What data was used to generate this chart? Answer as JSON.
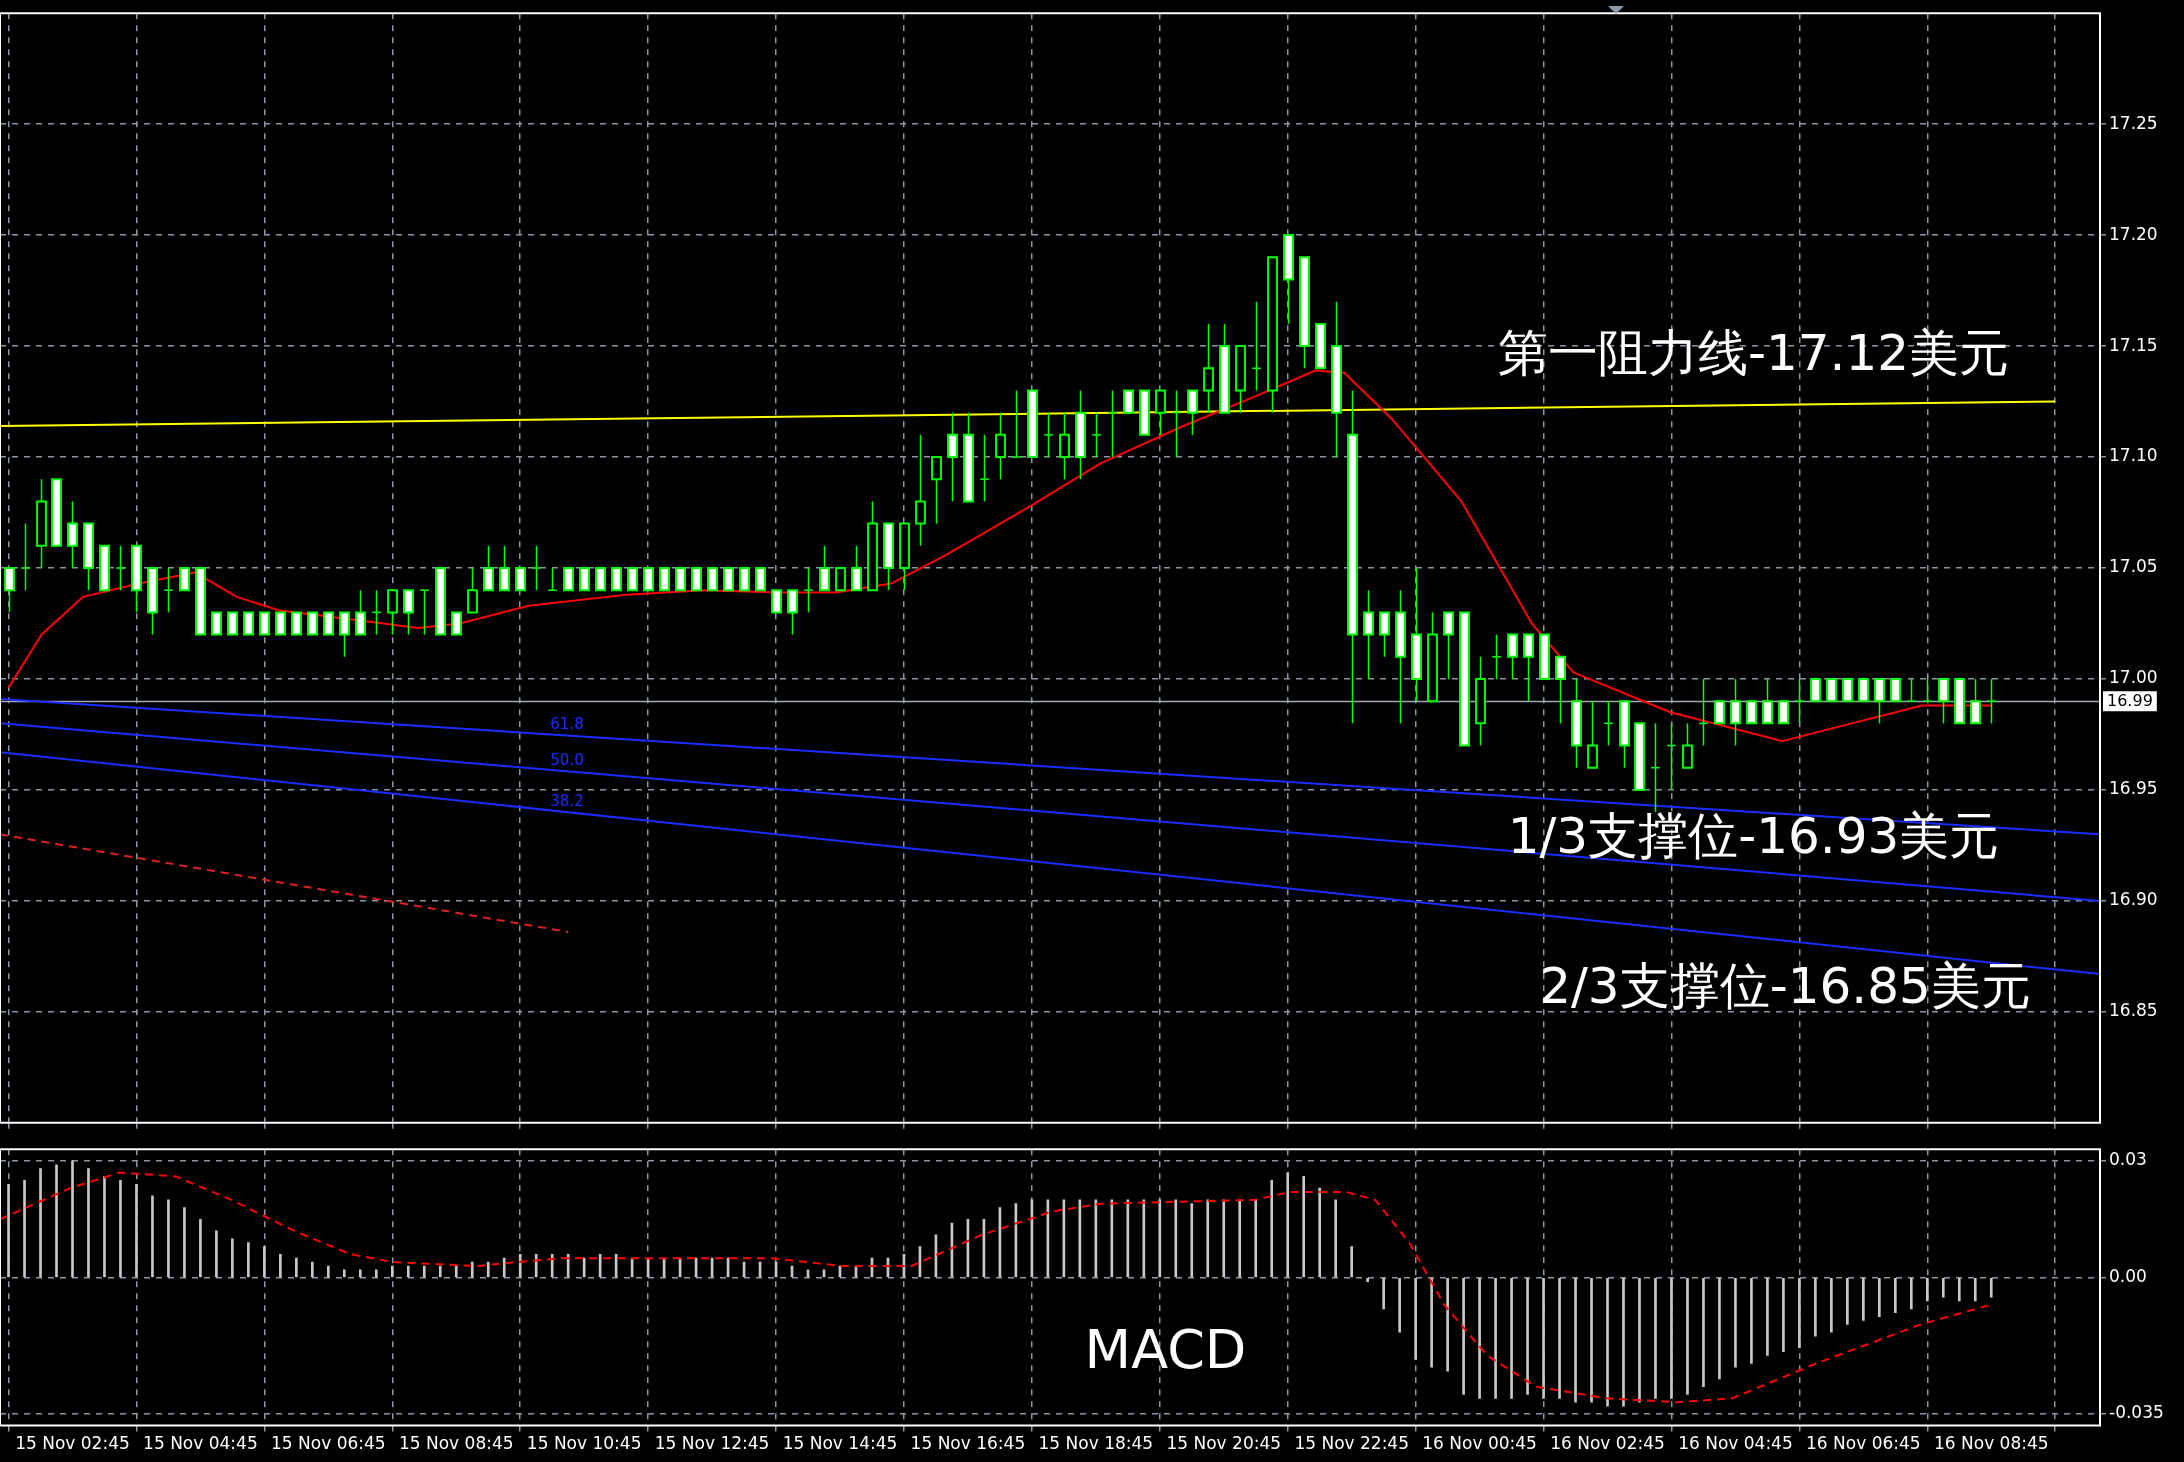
{
  "chart_data": [
    {
      "type": "candlestick",
      "x": [
        "--11-15T01:45",
        "--11-15T02:00",
        "--11-15T02:15",
        "--11-15T02:30",
        "--11-15T02:45",
        "--11-15T03:00",
        "--11-15T03:15",
        "--11-15T03:30",
        "--11-15T03:45",
        "--11-15T04:00",
        "--11-15T04:15",
        "--11-15T04:30",
        "--11-15T04:45",
        "--11-15T05:00",
        "--11-15T05:15",
        "--11-15T05:30",
        "--11-15T05:45",
        "--11-15T06:00",
        "--11-15T06:15",
        "--11-15T06:30",
        "--11-15T06:45",
        "--11-15T07:00",
        "--11-15T07:15",
        "--11-15T07:30",
        "--11-15T07:45",
        "--11-15T08:00",
        "--11-15T08:15",
        "--11-15T08:30",
        "--11-15T08:45",
        "--11-15T09:00",
        "--11-15T09:15",
        "--11-15T09:30",
        "--11-15T09:45",
        "--11-15T10:00",
        "--11-15T10:15",
        "--11-15T10:30",
        "--11-15T10:45",
        "--11-15T11:00",
        "--11-15T11:15",
        "--11-15T11:30",
        "--11-15T11:45",
        "--11-15T12:00",
        "--11-15T12:15",
        "--11-15T12:30",
        "--11-15T12:45",
        "--11-15T13:00",
        "--11-15T13:15",
        "--11-15T13:30",
        "--11-15T13:45",
        "--11-15T14:00",
        "--11-15T14:15",
        "--11-15T14:30",
        "--11-15T14:45",
        "--11-15T15:00",
        "--11-15T15:15",
        "--11-15T15:30",
        "--11-15T15:45",
        "--11-15T16:00",
        "--11-15T16:15",
        "--11-15T16:30",
        "--11-15T16:45",
        "--11-15T17:00",
        "--11-15T17:15",
        "--11-15T17:30",
        "--11-15T17:45",
        "--11-15T18:00",
        "--11-15T18:15",
        "--11-15T18:30",
        "--11-15T18:45",
        "--11-15T19:00",
        "--11-15T19:15",
        "--11-15T19:30",
        "--11-15T19:45",
        "--11-15T20:00",
        "--11-15T20:15",
        "--11-15T20:30",
        "--11-15T20:45",
        "--11-15T21:00",
        "--11-15T21:15",
        "--11-15T21:30",
        "--11-15T21:45",
        "--11-15T22:00",
        "--11-15T22:15",
        "--11-15T22:30",
        "--11-15T22:45",
        "--11-15T23:00",
        "--11-15T23:15",
        "--11-15T23:30",
        "--11-15T23:45",
        "--11-16T00:00",
        "--11-16T00:15",
        "--11-16T00:30",
        "--11-16T00:45",
        "--11-16T01:00",
        "--11-16T01:15",
        "--11-16T01:30",
        "--11-16T01:45",
        "--11-16T02:00",
        "--11-16T02:15",
        "--11-16T02:30",
        "--11-16T02:45",
        "--11-16T03:00",
        "--11-16T03:15",
        "--11-16T03:30",
        "--11-16T03:45",
        "--11-16T04:00",
        "--11-16T04:15",
        "--11-16T04:30",
        "--11-16T04:45",
        "--11-16T05:00",
        "--11-16T05:15",
        "--11-16T05:30",
        "--11-16T05:45",
        "--11-16T06:00",
        "--11-16T06:15",
        "--11-16T06:30",
        "--11-16T06:45",
        "--11-16T07:00",
        "--11-16T07:15",
        "--11-16T07:30",
        "--11-16T07:45",
        "--11-16T08:00",
        "--11-16T08:15",
        "--11-16T08:30",
        "--11-16T08:45"
      ],
      "ohlc": [
        [
          17.05,
          17.05,
          17.03,
          17.04
        ],
        [
          17.05,
          17.07,
          17.04,
          17.05
        ],
        [
          17.06,
          17.09,
          17.05,
          17.08
        ],
        [
          17.09,
          17.09,
          17.06,
          17.06
        ],
        [
          17.07,
          17.08,
          17.05,
          17.06
        ],
        [
          17.07,
          17.07,
          17.04,
          17.05
        ],
        [
          17.06,
          17.06,
          17.04,
          17.04
        ],
        [
          17.05,
          17.06,
          17.04,
          17.05
        ],
        [
          17.06,
          17.06,
          17.03,
          17.04
        ],
        [
          17.05,
          17.05,
          17.02,
          17.03
        ],
        [
          17.04,
          17.05,
          17.03,
          17.04
        ],
        [
          17.05,
          17.05,
          17.04,
          17.04
        ],
        [
          17.05,
          17.05,
          17.02,
          17.02
        ],
        [
          17.03,
          17.03,
          17.02,
          17.02
        ],
        [
          17.03,
          17.03,
          17.02,
          17.02
        ],
        [
          17.03,
          17.03,
          17.02,
          17.02
        ],
        [
          17.03,
          17.03,
          17.02,
          17.02
        ],
        [
          17.03,
          17.03,
          17.02,
          17.02
        ],
        [
          17.03,
          17.03,
          17.02,
          17.02
        ],
        [
          17.03,
          17.03,
          17.02,
          17.02
        ],
        [
          17.03,
          17.03,
          17.02,
          17.02
        ],
        [
          17.03,
          17.03,
          17.01,
          17.02
        ],
        [
          17.03,
          17.04,
          17.02,
          17.02
        ],
        [
          17.03,
          17.04,
          17.02,
          17.03
        ],
        [
          17.03,
          17.04,
          17.02,
          17.04
        ],
        [
          17.04,
          17.04,
          17.02,
          17.03
        ],
        [
          17.04,
          17.04,
          17.02,
          17.04
        ],
        [
          17.05,
          17.05,
          17.02,
          17.02
        ],
        [
          17.03,
          17.03,
          17.02,
          17.02
        ],
        [
          17.03,
          17.05,
          17.03,
          17.04
        ],
        [
          17.05,
          17.06,
          17.04,
          17.04
        ],
        [
          17.05,
          17.06,
          17.04,
          17.04
        ],
        [
          17.05,
          17.05,
          17.04,
          17.04
        ],
        [
          17.05,
          17.06,
          17.04,
          17.05
        ],
        [
          17.04,
          17.05,
          17.04,
          17.04
        ],
        [
          17.05,
          17.05,
          17.04,
          17.04
        ],
        [
          17.05,
          17.05,
          17.04,
          17.04
        ],
        [
          17.05,
          17.05,
          17.04,
          17.04
        ],
        [
          17.05,
          17.05,
          17.04,
          17.04
        ],
        [
          17.05,
          17.05,
          17.04,
          17.04
        ],
        [
          17.05,
          17.05,
          17.04,
          17.04
        ],
        [
          17.05,
          17.05,
          17.04,
          17.04
        ],
        [
          17.05,
          17.05,
          17.04,
          17.04
        ],
        [
          17.05,
          17.05,
          17.04,
          17.04
        ],
        [
          17.05,
          17.05,
          17.04,
          17.04
        ],
        [
          17.05,
          17.05,
          17.04,
          17.04
        ],
        [
          17.05,
          17.05,
          17.04,
          17.04
        ],
        [
          17.05,
          17.05,
          17.04,
          17.04
        ],
        [
          17.04,
          17.04,
          17.03,
          17.03
        ],
        [
          17.04,
          17.04,
          17.02,
          17.03
        ],
        [
          17.04,
          17.05,
          17.03,
          17.04
        ],
        [
          17.05,
          17.06,
          17.04,
          17.04
        ],
        [
          17.04,
          17.05,
          17.04,
          17.05
        ],
        [
          17.05,
          17.06,
          17.04,
          17.04
        ],
        [
          17.04,
          17.08,
          17.04,
          17.07
        ],
        [
          17.07,
          17.07,
          17.04,
          17.05
        ],
        [
          17.05,
          17.07,
          17.04,
          17.07
        ],
        [
          17.07,
          17.11,
          17.06,
          17.08
        ],
        [
          17.09,
          17.1,
          17.07,
          17.1
        ],
        [
          17.11,
          17.12,
          17.08,
          17.1
        ],
        [
          17.11,
          17.12,
          17.08,
          17.08
        ],
        [
          17.09,
          17.11,
          17.08,
          17.09
        ],
        [
          17.1,
          17.12,
          17.09,
          17.11
        ],
        [
          17.1,
          17.13,
          17.1,
          17.1
        ],
        [
          17.13,
          17.13,
          17.1,
          17.1
        ],
        [
          17.11,
          17.12,
          17.1,
          17.11
        ],
        [
          17.1,
          17.12,
          17.09,
          17.11
        ],
        [
          17.12,
          17.13,
          17.09,
          17.1
        ],
        [
          17.11,
          17.12,
          17.1,
          17.11
        ],
        [
          17.12,
          17.13,
          17.1,
          17.12
        ],
        [
          17.13,
          17.13,
          17.12,
          17.12
        ],
        [
          17.13,
          17.13,
          17.11,
          17.11
        ],
        [
          17.12,
          17.13,
          17.11,
          17.13
        ],
        [
          17.12,
          17.13,
          17.1,
          17.12
        ],
        [
          17.13,
          17.13,
          17.11,
          17.12
        ],
        [
          17.13,
          17.16,
          17.12,
          17.14
        ],
        [
          17.15,
          17.16,
          17.12,
          17.12
        ],
        [
          17.13,
          17.15,
          17.12,
          17.15
        ],
        [
          17.14,
          17.17,
          17.13,
          17.14
        ],
        [
          17.13,
          17.19,
          17.12,
          17.19
        ],
        [
          17.2,
          17.2,
          17.16,
          17.18
        ],
        [
          17.19,
          17.19,
          17.14,
          17.15
        ],
        [
          17.16,
          17.16,
          17.14,
          17.14
        ],
        [
          17.15,
          17.17,
          17.1,
          17.12
        ],
        [
          17.11,
          17.13,
          16.98,
          17.02
        ],
        [
          17.03,
          17.04,
          17,
          17.02
        ],
        [
          17.03,
          17.03,
          17.01,
          17.02
        ],
        [
          17.03,
          17.04,
          16.98,
          17.01
        ],
        [
          17.02,
          17.05,
          16.99,
          17
        ],
        [
          16.99,
          17.03,
          16.99,
          17.02
        ],
        [
          17.03,
          17.03,
          17,
          17.02
        ],
        [
          17.03,
          17.03,
          16.97,
          16.97
        ],
        [
          16.98,
          17.01,
          16.97,
          17
        ],
        [
          17.01,
          17.02,
          17,
          17.01
        ],
        [
          17.02,
          17.02,
          17,
          17.01
        ],
        [
          17.02,
          17.02,
          16.99,
          17.01
        ],
        [
          17.02,
          17.02,
          17,
          17
        ],
        [
          17.01,
          17.01,
          16.98,
          17
        ],
        [
          16.99,
          17,
          16.96,
          16.97
        ],
        [
          16.96,
          16.99,
          16.96,
          16.97
        ],
        [
          16.98,
          16.99,
          16.97,
          16.98
        ],
        [
          16.99,
          16.99,
          16.96,
          16.97
        ],
        [
          16.98,
          16.98,
          16.95,
          16.95
        ],
        [
          16.96,
          16.98,
          16.94,
          16.96
        ],
        [
          16.97,
          16.98,
          16.95,
          16.97
        ],
        [
          16.96,
          16.98,
          16.96,
          16.97
        ],
        [
          16.98,
          17,
          16.97,
          16.98
        ],
        [
          16.99,
          16.99,
          16.98,
          16.98
        ],
        [
          16.99,
          17,
          16.97,
          16.98
        ],
        [
          16.99,
          16.99,
          16.98,
          16.98
        ],
        [
          16.99,
          17,
          16.98,
          16.98
        ],
        [
          16.99,
          16.99,
          16.98,
          16.98
        ],
        [
          16.99,
          17,
          16.98,
          16.99
        ],
        [
          17,
          17,
          16.99,
          16.99
        ],
        [
          17,
          17,
          16.99,
          16.99
        ],
        [
          17,
          17,
          16.99,
          16.99
        ],
        [
          17,
          17,
          16.99,
          16.99
        ],
        [
          17,
          17,
          16.98,
          16.99
        ],
        [
          17,
          17,
          16.99,
          16.99
        ],
        [
          16.99,
          17,
          16.99,
          16.99
        ],
        [
          16.99,
          17,
          16.99,
          16.99
        ],
        [
          17,
          17,
          16.98,
          16.99
        ],
        [
          17,
          17,
          16.98,
          16.98
        ],
        [
          16.99,
          17,
          16.98,
          16.98
        ],
        [
          16.99,
          17,
          16.98,
          16.99
        ]
      ],
      "series": [
        {
          "type": "line",
          "color": "#ff0000",
          "x": [
            "--11-15T01:45",
            "--11-15T02:16",
            "--11-15T02:55",
            "--11-15T03:47",
            "--11-15T04:40",
            "--11-15T05:19",
            "--11-15T05:58",
            "--11-15T07:04",
            "--11-15T08:09",
            "--11-15T08:48",
            "--11-15T09:53",
            "--11-15T11:25",
            "--11-15T12:37",
            "--11-15T13:49",
            "--11-15T14:41",
            "--11-15T15:33",
            "--11-15T16:25",
            "--11-15T17:44",
            "--11-15T18:49",
            "--11-15T20:07",
            "--11-15T21:13",
            "--11-15T22:11",
            "--11-15T22:38",
            "--11-15T23:23",
            "--11-16T00:28",
            "--11-16T01:34",
            "--11-16T02:13",
            "--11-16T03:44",
            "--11-16T05:29",
            "--11-16T06:34",
            "--11-16T07:40",
            "--11-16T08:45"
          ],
          "values": [
            16.996,
            17.02,
            17.037,
            17.043,
            17.048,
            17.037,
            17.031,
            17.027,
            17.023,
            17.025,
            17.033,
            17.038,
            17.04,
            17.039,
            17.039,
            17.043,
            17.056,
            17.078,
            17.097,
            17.114,
            17.127,
            17.139,
            17.138,
            17.117,
            17.08,
            17.025,
            17.003,
            16.985,
            16.972,
            16.98,
            16.988,
            16.988
          ]
        },
        {
          "type": "line",
          "color": "#ffff00",
          "x": [
            "--11-15T01:37",
            "--11-16T09:45"
          ],
          "values": [
            17.114,
            17.125
          ]
        },
        {
          "type": "line",
          "name": "61.8",
          "color": "#1a2cff",
          "x": [
            "--11-15T01:37",
            "--11-16T10:27"
          ],
          "values": [
            16.991,
            16.93
          ]
        },
        {
          "type": "line",
          "name": "50.0",
          "color": "#1a2cff",
          "x": [
            "--11-15T01:37",
            "--11-16T10:27"
          ],
          "values": [
            16.98,
            16.9
          ]
        },
        {
          "type": "line",
          "name": "38.2",
          "color": "#1a2cff",
          "x": [
            "--11-15T01:37",
            "--11-16T10:27"
          ],
          "values": [
            16.967,
            16.867
          ]
        },
        {
          "type": "line",
          "color": "#e02020",
          "line_style": "dashed",
          "x": [
            "--11-15T01:37",
            "--11-15T10:30"
          ],
          "values": [
            16.93,
            16.886
          ]
        }
      ],
      "xlim": [
        "--11-15T01:37",
        "--11-16T10:27"
      ],
      "xticks": [
        {
          "value": "--11-15T02:45",
          "label": null
        },
        {
          "value": "--11-15T04:45",
          "label": null
        },
        {
          "value": "--11-15T06:45",
          "label": null
        },
        {
          "value": "--11-15T08:45",
          "label": null
        },
        {
          "value": "--11-15T10:45",
          "label": null
        },
        {
          "value": "--11-15T12:45",
          "label": null
        },
        {
          "value": "--11-15T14:45",
          "label": null
        },
        {
          "value": "--11-15T16:45",
          "label": null
        },
        {
          "value": "--11-15T18:45",
          "label": null
        },
        {
          "value": "--11-15T20:45",
          "label": null
        },
        {
          "value": "--11-15T22:45",
          "label": null
        },
        {
          "value": "--11-16T00:45",
          "label": null
        },
        {
          "value": "--11-16T02:45",
          "label": null
        },
        {
          "value": "--11-16T04:45",
          "label": null
        },
        {
          "value": "--11-16T06:45",
          "label": null
        },
        {
          "value": "--11-16T08:45",
          "label": null
        }
      ],
      "ylim": [
        16.8,
        17.3
      ],
      "yticks": [
        {
          "value": 16.85,
          "label": "16.85"
        },
        {
          "value": 16.9,
          "label": "16.90"
        },
        {
          "value": 16.95,
          "label": "16.95"
        },
        {
          "value": 17,
          "label": "17.00"
        },
        {
          "value": 17.05,
          "label": "17.05"
        },
        {
          "value": 17.1,
          "label": "17.10"
        },
        {
          "value": 17.15,
          "label": "17.15"
        },
        {
          "value": 17.2,
          "label": "17.20"
        },
        {
          "value": 17.25,
          "label": "17.25"
        }
      ],
      "ref_lines": [
        {
          "axis": "y",
          "value": 16.99,
          "label": "16.99",
          "color": "#a0a8b4"
        }
      ],
      "annotations": [
        "第一阻力线-17.12美元",
        "1/3支撑位-16.93美元",
        "2/3支撑位-16.85美元"
      ],
      "grid": true,
      "tick_labels": "y"
    },
    {
      "type": "bar",
      "x": [
        "--11-15T01:45",
        "--11-15T02:00",
        "--11-15T02:15",
        "--11-15T02:30",
        "--11-15T02:45",
        "--11-15T03:00",
        "--11-15T03:15",
        "--11-15T03:30",
        "--11-15T03:45",
        "--11-15T04:00",
        "--11-15T04:15",
        "--11-15T04:30",
        "--11-15T04:45",
        "--11-15T05:00",
        "--11-15T05:15",
        "--11-15T05:30",
        "--11-15T05:45",
        "--11-15T06:00",
        "--11-15T06:15",
        "--11-15T06:30",
        "--11-15T06:45",
        "--11-15T07:00",
        "--11-15T07:15",
        "--11-15T07:30",
        "--11-15T07:45",
        "--11-15T08:00",
        "--11-15T08:15",
        "--11-15T08:30",
        "--11-15T08:45",
        "--11-15T09:00",
        "--11-15T09:15",
        "--11-15T09:30",
        "--11-15T09:45",
        "--11-15T10:00",
        "--11-15T10:15",
        "--11-15T10:30",
        "--11-15T10:45",
        "--11-15T11:00",
        "--11-15T11:15",
        "--11-15T11:30",
        "--11-15T11:45",
        "--11-15T12:00",
        "--11-15T12:15",
        "--11-15T12:30",
        "--11-15T12:45",
        "--11-15T13:00",
        "--11-15T13:15",
        "--11-15T13:30",
        "--11-15T13:45",
        "--11-15T14:00",
        "--11-15T14:15",
        "--11-15T14:30",
        "--11-15T14:45",
        "--11-15T15:00",
        "--11-15T15:15",
        "--11-15T15:30",
        "--11-15T15:45",
        "--11-15T16:00",
        "--11-15T16:15",
        "--11-15T16:30",
        "--11-15T16:45",
        "--11-15T17:00",
        "--11-15T17:15",
        "--11-15T17:30",
        "--11-15T17:45",
        "--11-15T18:00",
        "--11-15T18:15",
        "--11-15T18:30",
        "--11-15T18:45",
        "--11-15T19:00",
        "--11-15T19:15",
        "--11-15T19:30",
        "--11-15T19:45",
        "--11-15T20:00",
        "--11-15T20:15",
        "--11-15T20:30",
        "--11-15T20:45",
        "--11-15T21:00",
        "--11-15T21:15",
        "--11-15T21:30",
        "--11-15T21:45",
        "--11-15T22:00",
        "--11-15T22:15",
        "--11-15T22:30",
        "--11-15T22:45",
        "--11-15T23:00",
        "--11-15T23:15",
        "--11-15T23:30",
        "--11-15T23:45",
        "--11-16T00:00",
        "--11-16T00:15",
        "--11-16T00:30",
        "--11-16T00:45",
        "--11-16T01:00",
        "--11-16T01:15",
        "--11-16T01:30",
        "--11-16T01:45",
        "--11-16T02:00",
        "--11-16T02:15",
        "--11-16T02:30",
        "--11-16T02:45",
        "--11-16T03:00",
        "--11-16T03:15",
        "--11-16T03:30",
        "--11-16T03:45",
        "--11-16T04:00",
        "--11-16T04:15",
        "--11-16T04:30",
        "--11-16T04:45",
        "--11-16T05:00",
        "--11-16T05:15",
        "--11-16T05:30",
        "--11-16T05:45",
        "--11-16T06:00",
        "--11-16T06:15",
        "--11-16T06:30",
        "--11-16T06:45",
        "--11-16T07:00",
        "--11-16T07:15",
        "--11-16T07:30",
        "--11-16T07:45",
        "--11-16T08:00",
        "--11-16T08:15",
        "--11-16T08:30",
        "--11-16T08:45"
      ],
      "series": [
        {
          "type": "bar",
          "color": "#c8c8c8",
          "values": [
            0.024,
            0.025,
            0.028,
            0.029,
            0.03,
            0.028,
            0.026,
            0.025,
            0.024,
            0.021,
            0.02,
            0.018,
            0.015,
            0.012,
            0.01,
            0.009,
            0.008,
            0.006,
            0.005,
            0.004,
            0.003,
            0.002,
            0.002,
            0.002,
            0.003,
            0.003,
            0.003,
            0.003,
            0.003,
            0.004,
            0.004,
            0.005,
            0.006,
            0.006,
            0.006,
            0.006,
            0.005,
            0.006,
            0.006,
            0.005,
            0.005,
            0.005,
            0.005,
            0.005,
            0.005,
            0.005,
            0.004,
            0.004,
            0.004,
            0.003,
            0.002,
            0.002,
            0.003,
            0.003,
            0.005,
            0.005,
            0.006,
            0.008,
            0.011,
            0.014,
            0.015,
            0.015,
            0.018,
            0.019,
            0.02,
            0.02,
            0.02,
            0.02,
            0.02,
            0.02,
            0.02,
            0.02,
            0.02,
            0.02,
            0.019,
            0.02,
            0.02,
            0.02,
            0.02,
            0.025,
            0.027,
            0.026,
            0.023,
            0.02,
            0.008,
            -0.001,
            -0.008,
            -0.014,
            -0.021,
            -0.023,
            -0.024,
            -0.03,
            -0.031,
            -0.031,
            -0.031,
            -0.03,
            -0.031,
            -0.031,
            -0.032,
            -0.032,
            -0.033,
            -0.033,
            -0.032,
            -0.031,
            -0.031,
            -0.03,
            -0.028,
            -0.026,
            -0.023,
            -0.022,
            -0.02,
            -0.019,
            -0.018,
            -0.015,
            -0.014,
            -0.012,
            -0.011,
            -0.01,
            -0.009,
            -0.008,
            -0.006,
            -0.005,
            -0.006,
            -0.006,
            -0.005
          ]
        },
        {
          "type": "line",
          "color": "#ff0000",
          "line_style": "dashed",
          "x": [
            "--11-15T01:37",
            "--11-15T02:43",
            "--11-15T03:29",
            "--11-15T04:22",
            "--11-15T05:14",
            "--11-15T06:13",
            "--11-15T07:06",
            "--11-15T07:46",
            "--11-15T09:04",
            "--11-15T10:23",
            "--11-15T11:29",
            "--11-15T13:41",
            "--11-15T14:47",
            "--11-15T15:52",
            "--11-15T16:58",
            "--11-15T18:04",
            "--11-15T18:49",
            "--11-15T21:14",
            "--11-15T21:47",
            "--11-15T22:40",
            "--11-15T23:07",
            "--11-15T23:39",
            "--11-16T00:12",
            "--11-16T00:52",
            "--11-16T01:38",
            "--11-16T02:44",
            "--11-16T03:50",
            "--11-16T04:42",
            "--11-16T06:01",
            "--11-16T07:39",
            "--11-16T08:44"
          ],
          "values": [
            0.015,
            0.023,
            0.027,
            0.026,
            0.02,
            0.012,
            0.006,
            0.004,
            0.003,
            0.005,
            0.005,
            0.005,
            0.003,
            0.003,
            0.011,
            0.017,
            0.019,
            0.02,
            0.022,
            0.022,
            0.02,
            0.009,
            -0.007,
            -0.02,
            -0.028,
            -0.031,
            -0.032,
            -0.031,
            -0.022,
            -0.012,
            -0.007
          ]
        }
      ],
      "xlim": [
        "--11-15T01:37",
        "--11-16T10:27"
      ],
      "xticks": [
        {
          "value": "--11-15T02:45",
          "label": "15 Nov 02:45"
        },
        {
          "value": "--11-15T04:45",
          "label": "15 Nov 04:45"
        },
        {
          "value": "--11-15T06:45",
          "label": "15 Nov 06:45"
        },
        {
          "value": "--11-15T08:45",
          "label": "15 Nov 08:45"
        },
        {
          "value": "--11-15T10:45",
          "label": "15 Nov 10:45"
        },
        {
          "value": "--11-15T12:45",
          "label": "15 Nov 12:45"
        },
        {
          "value": "--11-15T14:45",
          "label": "15 Nov 14:45"
        },
        {
          "value": "--11-15T16:45",
          "label": "15 Nov 16:45"
        },
        {
          "value": "--11-15T18:45",
          "label": "15 Nov 18:45"
        },
        {
          "value": "--11-15T20:45",
          "label": "15 Nov 20:45"
        },
        {
          "value": "--11-15T22:45",
          "label": "15 Nov 22:45"
        },
        {
          "value": "--11-16T00:45",
          "label": "16 Nov 00:45"
        },
        {
          "value": "--11-16T02:45",
          "label": "16 Nov 02:45"
        },
        {
          "value": "--11-16T04:45",
          "label": "16 Nov 04:45"
        },
        {
          "value": "--11-16T06:45",
          "label": "16 Nov 06:45"
        },
        {
          "value": "--11-16T08:45",
          "label": "16 Nov 08:45"
        }
      ],
      "ylim": [
        -0.038,
        0.033
      ],
      "yticks": [
        {
          "value": 0.03,
          "label": "0.03"
        },
        {
          "value": 0,
          "label": "0.00"
        },
        {
          "value": -0.035,
          "label": "-0.035"
        }
      ],
      "annotations": [
        "MACD"
      ],
      "grid": true
    }
  ]
}
